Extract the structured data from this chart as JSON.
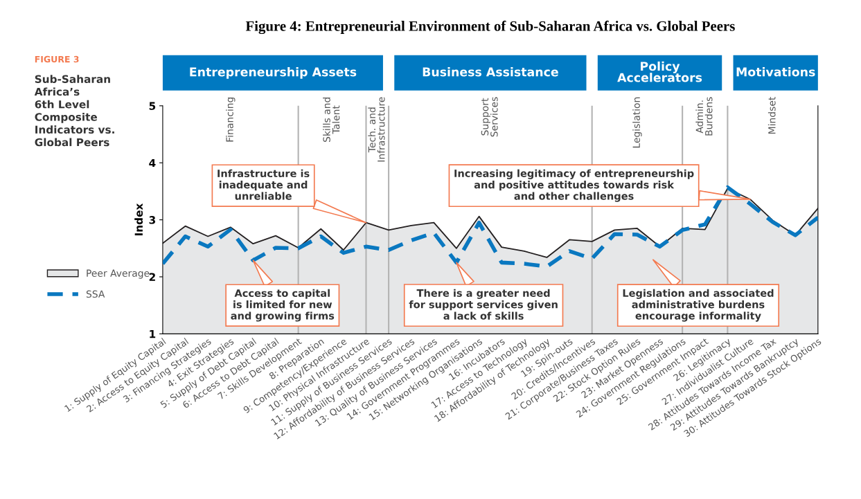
{
  "chart_data": {
    "type": "line",
    "title": "Figure 4: Entrepreneurial Environment of Sub-Saharan Africa vs. Global Peers",
    "subtitle": "Sub-Saharan\nAfrica’s\n6th Level\nComposite\nIndicators vs.\nGlobal Peers",
    "ylabel": "Index",
    "categories": [
      "1: Supply of Equity Capital",
      "2: Access to Equity Capital",
      "3: Financing Strategies",
      "4: Exit Strategies",
      "5: Supply of Debt Capital",
      "6: Access to Debt Capital",
      "7: Skills Development",
      "8: Preparation",
      "9: Competency/Experience",
      "10: Physical Infrastructure",
      "11: Supply of Business Services",
      "12: Affordability of Business Services",
      "13: Quality of Business Services",
      "14: Government Programmes",
      "15: Networking Organisations",
      "16: Incubators",
      "17: Access to Technology",
      "18: Affordability of Technology",
      "19: Spin-outs",
      "20: Credits/Incentives",
      "21: Corporate/Business Taxes",
      "22: Stock Option Rules",
      "23: Market Openness",
      "24: Government Regulations",
      "25: Government Impact",
      "26: Legitimacy",
      "27: Individualist Culture",
      "28: Attitudes Towards Income Tax",
      "29: Attitudes Towards Bankruptcy",
      "30: Attitudes Towards Stock Options"
    ],
    "series": [
      {
        "name": "Peer Average",
        "type": "area",
        "color": "#e6e7e8",
        "values": [
          2.59,
          2.89,
          2.71,
          2.87,
          2.58,
          2.72,
          2.51,
          2.84,
          2.47,
          2.95,
          2.82,
          2.9,
          2.95,
          2.5,
          3.06,
          2.52,
          2.45,
          2.34,
          2.65,
          2.62,
          2.82,
          2.85,
          2.53,
          2.85,
          2.83,
          3.55,
          3.36,
          2.99,
          2.73,
          3.2
        ]
      },
      {
        "name": "SSA",
        "line_style": "dashed",
        "color": "#0a78c0",
        "values": [
          2.23,
          2.71,
          2.53,
          2.83,
          2.29,
          2.51,
          2.5,
          2.71,
          2.42,
          2.53,
          2.47,
          2.64,
          2.77,
          2.25,
          2.95,
          2.25,
          2.23,
          2.18,
          2.45,
          2.32,
          2.75,
          2.74,
          2.53,
          2.82,
          2.92,
          3.57,
          3.28,
          2.96,
          2.73,
          3.04
        ]
      }
    ],
    "ylim": [
      1,
      5
    ],
    "yticks": [
      1,
      2,
      3,
      4,
      5
    ],
    "grid": false,
    "legend": "left",
    "marker": "none",
    "ref_lines": [
      {
        "axis": "x",
        "value": "7: Skills Development",
        "color": "#b3b3b3"
      },
      {
        "axis": "x",
        "value": "10: Physical Infrastructure",
        "color": "#b3b3b3"
      },
      {
        "axis": "x",
        "value": "11: Supply of Business Services",
        "color": "#b3b3b3"
      },
      {
        "axis": "x",
        "value": "20: Credits/Incentives",
        "color": "#b3b3b3"
      },
      {
        "axis": "x",
        "value": "24: Government Regulations",
        "color": "#b3b3b3"
      },
      {
        "axis": "x",
        "value": "26: Legitimacy",
        "color": "#b3b3b3"
      }
    ],
    "annotations": [
      "FIGURE 3",
      "Entrepreneurship Assets",
      "Business Assistance",
      "Policy\nAccelerators",
      "Motivations",
      "Financing",
      "Skills and\nTalent",
      "Tech. and\nInfrastructure",
      "Support\nServices",
      "Legislation",
      "Admin.\nBurdens",
      "Mindset",
      {
        "text": "Infrastructure is\ninadequate and\nunreliable",
        "x": "10: Physical Infrastructure",
        "y": 2.95
      },
      {
        "text": "Increasing legitimacy of entrepreneurship\nand positive attitudes towards risk\nand other challenges",
        "x": "27: Individualist Culture",
        "y": 3.36
      },
      {
        "text": "Access to capital\nis limited for new\nand growing firms",
        "x": "5: Supply of Debt Capital",
        "y": 2.29
      },
      {
        "text": "There is a greater need\nfor support services given\na lack of skills",
        "x": "14: Government Programmes",
        "y": 2.25
      },
      "Legislation and associated\nadministrative burdens\nencourage informality"
    ]
  }
}
